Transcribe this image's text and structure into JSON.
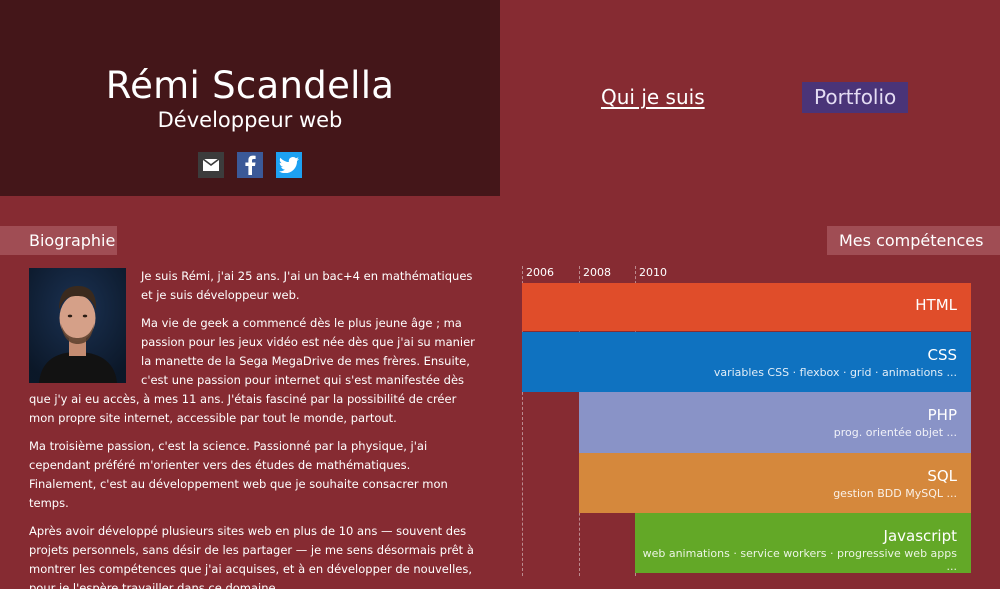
{
  "header": {
    "name": "Rémi Scandella",
    "role": "Développeur web",
    "socials": [
      {
        "icon": "mail-icon"
      },
      {
        "icon": "facebook-icon"
      },
      {
        "icon": "twitter-icon"
      }
    ]
  },
  "nav": {
    "about": "Qui je suis",
    "portfolio": "Portfolio"
  },
  "bio": {
    "label": "Biographie",
    "paragraphs": [
      "Je suis Rémi, j'ai 25 ans. J'ai un bac+4 en mathématiques et je suis développeur web.",
      "Ma vie de geek a commencé dès le plus jeune âge ; ma passion pour les jeux vidéo est née dès que j'ai su manier la manette de la Sega MegaDrive de mes frères. Ensuite, c'est une passion pour internet qui s'est manifestée dès que j'y ai eu accès, à mes 11 ans. J'étais fasciné par la possibilité de créer mon propre site internet, accessible par tout le monde, partout.",
      "Ma troisième passion, c'est la science. Passionné par la physique, j'ai cependant préféré m'orienter vers des études de mathématiques. Finalement, c'est au développement web que je souhaite consacrer mon temps.",
      "Après avoir développé plusieurs sites web en plus de 10 ans — souvent des projets personnels, sans désir de les partager — je me sens désormais prêt à montrer les compétences que j'ai acquises, et à en développer de nouvelles, pour je l'espère travailler dans ce domaine."
    ]
  },
  "skills": {
    "label": "Mes compétences",
    "years": [
      "2006",
      "2008",
      "2010"
    ],
    "items": [
      {
        "name": "HTML",
        "detail": "",
        "start": "2006",
        "color": "#e04d2a"
      },
      {
        "name": "CSS",
        "detail": "variables CSS · flexbox · grid · animations ...",
        "start": "2006",
        "color": "#0f72c0"
      },
      {
        "name": "PHP",
        "detail": "prog. orientée objet ...",
        "start": "2008",
        "color": "#8993c7"
      },
      {
        "name": "SQL",
        "detail": "gestion BDD MySQL ...",
        "start": "2008",
        "color": "#d5883c"
      },
      {
        "name": "Javascript",
        "detail": "web animations · service workers · progressive web apps ...",
        "start": "2010",
        "color": "#63a827"
      }
    ]
  }
}
